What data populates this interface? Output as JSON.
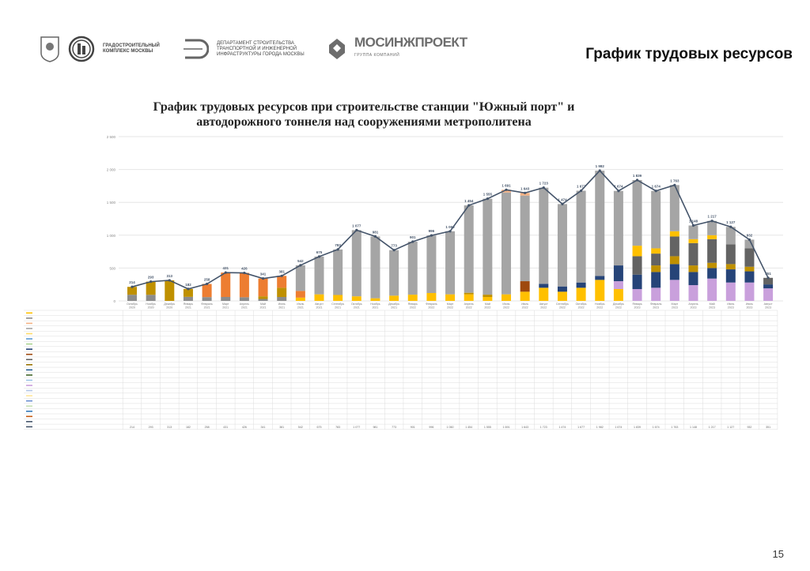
{
  "header": {
    "logo1_text": "ГРАДОСТРОИТЕЛЬНЫЙ КОМПЛЕКС МОСКВЫ",
    "logo2_text": "ДЕПАРТАМЕНТ СТРОИТЕЛЬСТВА ТРАНСПОРТНОЙ И ИНЖЕНЕРНОЙ ИНФРАСТРУКТУРЫ ГОРОДА МОСКВЫ",
    "logo3_name": "МОСИНЖПРОЕКТ",
    "logo3_sub": "ГРУППА КОМПАНИЙ",
    "title": "График трудовых ресурсов"
  },
  "page_number": "15",
  "chart_data": {
    "type": "bar",
    "stacked": true,
    "title": "График трудовых ресурсов при строительстве станции \"Южный порт\" и автодорожного тоннеля над сооружениями метрополитена",
    "ylim": [
      0,
      2500
    ],
    "yticks": [
      "0",
      "500",
      "1 000",
      "1 500",
      "2 000",
      "2 500"
    ],
    "grid": true,
    "categories": [
      "Октябрь 2020",
      "Ноябрь 2020",
      "Декабрь 2020",
      "Январь 2021",
      "Февраль 2021",
      "Март 2021",
      "Апрель 2021",
      "Май 2021",
      "Июнь 2021",
      "Июль 2021",
      "Август 2021",
      "Сентябрь 2021",
      "Октябрь 2021",
      "Ноябрь 2021",
      "Декабрь 2021",
      "Январь 2022",
      "Февраль 2022",
      "Март 2022",
      "Апрель 2022",
      "Май 2022",
      "Июнь 2022",
      "Июль 2022",
      "Август 2022",
      "Сентябрь 2022",
      "Октябрь 2022",
      "Ноябрь 2022",
      "Декабрь 2022",
      "Январь 2023",
      "Февраль 2023",
      "Март 2023",
      "Апрель 2023",
      "Май 2023",
      "Июнь 2023",
      "Июль 2023",
      "Август 2023"
    ],
    "totals": [
      214,
      293,
      313,
      182,
      258,
      431,
      426,
      341,
      381,
      542,
      675,
      783,
      1077,
      981,
      773,
      901,
      996,
      1060,
      1454,
      1555,
      1691,
      1643,
      1723,
      1474,
      1677,
      1982,
      1674,
      1839,
      1674,
      1763,
      1148,
      1217,
      1127,
      932,
      351
    ],
    "total_labels": [
      "214",
      "293",
      "313",
      "182",
      "258",
      "431",
      "426",
      "341",
      "381",
      "542",
      "675",
      "783",
      "1 077",
      "981",
      "773",
      "901",
      "996",
      "1 060",
      "1 454",
      "1 555",
      "1 691",
      "1 643",
      "1 723",
      "1 474",
      "1 677",
      "1 982",
      "1 674",
      "1 839",
      "1 674",
      "1 763",
      "1 148",
      "1 217",
      "1 127",
      "932",
      "351"
    ],
    "line_color": "#44546a",
    "series": [
      {
        "color": "#8c8c8c",
        "values": [
          94,
          93,
          0,
          62,
          58,
          60,
          56,
          30,
          60,
          0,
          0,
          0,
          0,
          0,
          0,
          0,
          0,
          0,
          0,
          0,
          0,
          0,
          0,
          0,
          0,
          0,
          0,
          0,
          0,
          0,
          0,
          0,
          0,
          0,
          0
        ]
      },
      {
        "color": "#ffc000",
        "values": [
          0,
          0,
          0,
          0,
          0,
          0,
          0,
          0,
          0,
          50,
          100,
          90,
          70,
          40,
          80,
          95,
          120,
          100,
          100,
          60,
          100,
          140,
          200,
          140,
          200,
          320,
          180,
          0,
          0,
          0,
          0,
          0,
          0,
          0,
          0
        ]
      },
      {
        "color": "#9e480e",
        "values": [
          0,
          0,
          0,
          0,
          0,
          0,
          0,
          0,
          0,
          0,
          0,
          0,
          0,
          0,
          0,
          0,
          0,
          0,
          0,
          0,
          0,
          160,
          0,
          0,
          0,
          0,
          0,
          0,
          0,
          0,
          0,
          0,
          0,
          0,
          0
        ]
      },
      {
        "color": "#c9a0dc",
        "values": [
          0,
          0,
          0,
          0,
          0,
          0,
          0,
          0,
          0,
          0,
          0,
          0,
          0,
          0,
          0,
          0,
          0,
          0,
          0,
          0,
          0,
          0,
          0,
          0,
          0,
          0,
          120,
          180,
          200,
          320,
          240,
          340,
          280,
          280,
          191
        ]
      },
      {
        "color": "#264478",
        "values": [
          0,
          0,
          0,
          0,
          0,
          0,
          0,
          0,
          0,
          0,
          0,
          0,
          0,
          0,
          0,
          0,
          0,
          0,
          0,
          0,
          0,
          0,
          60,
          80,
          80,
          60,
          240,
          220,
          240,
          240,
          200,
          160,
          200,
          170,
          60
        ]
      },
      {
        "color": "#bf9000",
        "values": [
          120,
          200,
          313,
          120,
          0,
          0,
          0,
          40,
          140,
          0,
          0,
          0,
          0,
          0,
          0,
          0,
          0,
          0,
          24,
          35,
          0,
          0,
          0,
          0,
          0,
          0,
          0,
          0,
          100,
          120,
          100,
          80,
          80,
          70,
          0
        ]
      },
      {
        "color": "#636363",
        "values": [
          0,
          0,
          0,
          0,
          0,
          0,
          0,
          0,
          0,
          0,
          0,
          0,
          0,
          0,
          0,
          0,
          0,
          0,
          0,
          0,
          0,
          0,
          0,
          0,
          0,
          0,
          0,
          280,
          180,
          300,
          340,
          360,
          300,
          280,
          100
        ]
      },
      {
        "color": "#ffc000",
        "values": [
          0,
          0,
          0,
          0,
          0,
          0,
          0,
          0,
          0,
          0,
          0,
          0,
          0,
          0,
          0,
          0,
          0,
          0,
          0,
          0,
          0,
          0,
          0,
          0,
          0,
          0,
          0,
          160,
          80,
          80,
          60,
          60,
          0,
          0,
          0
        ]
      },
      {
        "color": "#ed7d31",
        "values": [
          0,
          0,
          0,
          0,
          200,
          371,
          370,
          271,
          181,
          102,
          0,
          0,
          0,
          0,
          0,
          0,
          0,
          0,
          0,
          0,
          0,
          0,
          0,
          0,
          0,
          0,
          0,
          0,
          0,
          0,
          0,
          0,
          0,
          0,
          0
        ]
      },
      {
        "color": "#a5a5a5",
        "values": [
          0,
          0,
          0,
          0,
          0,
          0,
          0,
          0,
          0,
          390,
          575,
          693,
          1007,
          941,
          693,
          806,
          876,
          960,
          1330,
          1460,
          1550,
          1303,
          1463,
          1254,
          1397,
          1602,
          1134,
          999,
          874,
          703,
          208,
          217,
          267,
          132,
          0
        ]
      },
      {
        "color": "#f4b183",
        "values": [
          0,
          0,
          0,
          0,
          0,
          0,
          0,
          0,
          0,
          0,
          0,
          0,
          0,
          0,
          0,
          0,
          0,
          0,
          0,
          0,
          41,
          40,
          0,
          0,
          0,
          0,
          0,
          0,
          0,
          0,
          0,
          0,
          0,
          0,
          0
        ]
      }
    ],
    "table_row_colors": [
      "#ffc000",
      "#8c8c8c",
      "#f4b183",
      "#a5a5a5",
      "#ffd966",
      "#5b9bd5",
      "#a9d18e",
      "#264478",
      "#9e480e",
      "#636363",
      "#997300",
      "#255e91",
      "#43682b",
      "#9dc3e6",
      "#c9a0dc",
      "#b4c7e7",
      "#ffe699",
      "#698ed0",
      "#c5e0b4",
      "#2e75b6",
      "#c55a11",
      "#44546a",
      "#44546a"
    ]
  }
}
